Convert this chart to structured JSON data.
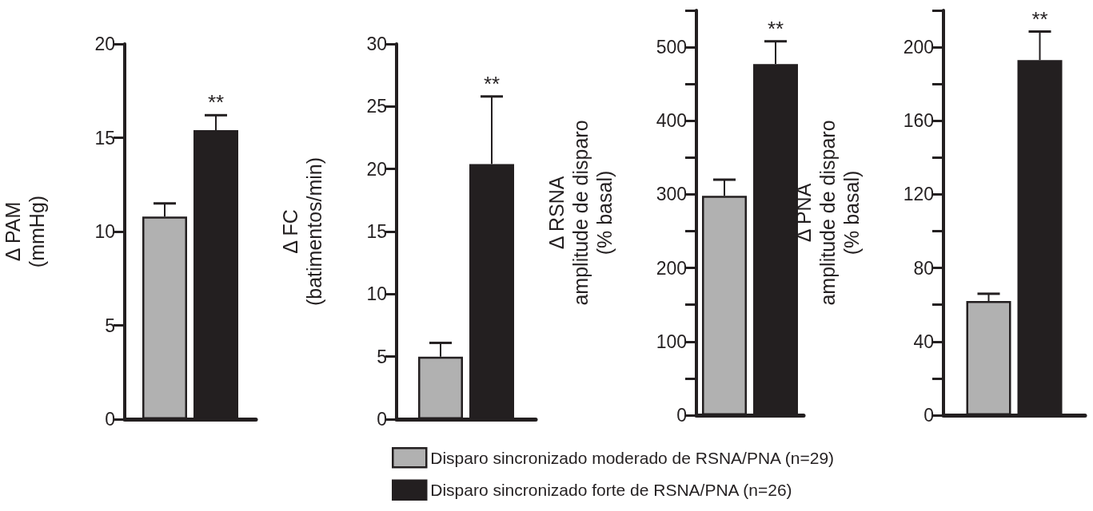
{
  "chart_data": [
    {
      "type": "bar",
      "ylabel": "Δ PAM\n(mmHg)",
      "categories": [
        null
      ],
      "ylim": [
        0,
        20
      ],
      "yticks": [
        0,
        5,
        10,
        15,
        20
      ],
      "grid": false,
      "legend": false,
      "annotations": [
        "**"
      ],
      "series": [
        {
          "color": "#b1b1b1",
          "values": [
            10.8
          ],
          "errors": [
            [
              10.8,
              11.5
            ]
          ]
        },
        {
          "color": "#231f20",
          "values": [
            15.4
          ],
          "errors": [
            [
              15.4,
              16.2
            ]
          ]
        }
      ]
    },
    {
      "type": "bar",
      "ylabel": "Δ FC\n(batimentos/min)",
      "categories": [
        null
      ],
      "ylim": [
        0,
        30
      ],
      "yticks": [
        0,
        5,
        10,
        15,
        20,
        25,
        30
      ],
      "grid": false,
      "legend": false,
      "annotations": [
        "**"
      ],
      "series": [
        {
          "color": "#b1b1b1",
          "values": [
            5.0
          ],
          "errors": [
            [
              5.0,
              6.1
            ]
          ]
        },
        {
          "color": "#231f20",
          "values": [
            20.4
          ],
          "errors": [
            [
              20.4,
              25.8
            ]
          ]
        }
      ]
    },
    {
      "type": "bar",
      "ylabel": "Δ RSNA\namplitude de disparo\n(% basal)",
      "categories": [
        null
      ],
      "ylim": [
        0,
        550
      ],
      "yticks": [
        0,
        {
          "value": 50,
          "label": null
        },
        100,
        {
          "value": 150,
          "label": null
        },
        200,
        {
          "value": 250,
          "label": null
        },
        300,
        {
          "value": 350,
          "label": null
        },
        400,
        {
          "value": 450,
          "label": null
        },
        500,
        {
          "value": 550,
          "label": null
        }
      ],
      "grid": false,
      "legend": false,
      "annotations": [
        "**"
      ],
      "series": [
        {
          "color": "#b1b1b1",
          "values": [
            298
          ],
          "errors": [
            [
              298,
              320
            ]
          ]
        },
        {
          "color": "#231f20",
          "values": [
            477
          ],
          "errors": [
            [
              477,
              508
            ]
          ]
        }
      ]
    },
    {
      "type": "bar",
      "ylabel": "Δ PNA\namplitude de disparo\n(% basal)",
      "categories": [
        null
      ],
      "ylim": [
        0,
        220
      ],
      "yticks": [
        0,
        {
          "value": 20,
          "label": null
        },
        40,
        {
          "value": 60,
          "label": null
        },
        80,
        {
          "value": 100,
          "label": null
        },
        120,
        {
          "value": 140,
          "label": null
        },
        160,
        {
          "value": 180,
          "label": null
        },
        200,
        {
          "value": 220,
          "label": null
        }
      ],
      "grid": false,
      "legend": "bottom",
      "annotations": [
        "**"
      ],
      "series": [
        {
          "name": "Disparo sincronizado moderado de RSNA/PNA (n=29)",
          "color": "#b1b1b1",
          "values": [
            62
          ],
          "errors": [
            [
              62,
              66
            ]
          ]
        },
        {
          "name": "Disparo sincronizado forte de RSNA/PNA (n=26)",
          "color": "#231f20",
          "values": [
            193
          ],
          "errors": [
            [
              193,
              208.5
            ]
          ]
        }
      ]
    }
  ]
}
